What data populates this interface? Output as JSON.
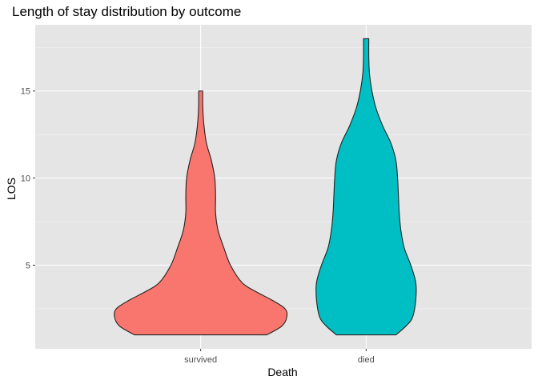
{
  "chart_data": {
    "type": "violin",
    "title": "Length of stay distribution by outcome",
    "xlabel": "Death",
    "ylabel": "LOS",
    "categories": [
      "survived",
      "died"
    ],
    "ylim": [
      0.2,
      18.8
    ],
    "yticks": [
      5,
      10,
      15
    ],
    "grid": true,
    "legend": "none",
    "colors": {
      "panel": "#e5e5e5",
      "grid_major": "#ffffff",
      "grid_minor": "#f2f2f2",
      "outline": "#222222"
    },
    "series": [
      {
        "category": "survived",
        "color": "#f8766d",
        "ymin": 1,
        "ymax": 15,
        "profile": [
          [
            1.0,
            0.4
          ],
          [
            1.5,
            0.49
          ],
          [
            2.0,
            0.52
          ],
          [
            2.5,
            0.51
          ],
          [
            3.0,
            0.43
          ],
          [
            3.5,
            0.33
          ],
          [
            4.0,
            0.25
          ],
          [
            5.0,
            0.18
          ],
          [
            6.0,
            0.14
          ],
          [
            7.0,
            0.105
          ],
          [
            8.0,
            0.09
          ],
          [
            9.0,
            0.09
          ],
          [
            10.0,
            0.085
          ],
          [
            11.0,
            0.065
          ],
          [
            12.0,
            0.035
          ],
          [
            13.0,
            0.02
          ],
          [
            14.0,
            0.013
          ],
          [
            15.0,
            0.012
          ]
        ]
      },
      {
        "category": "died",
        "color": "#00bfc4",
        "ymin": 1,
        "ymax": 18,
        "profile": [
          [
            1.0,
            0.18
          ],
          [
            1.5,
            0.24
          ],
          [
            2.0,
            0.28
          ],
          [
            3.0,
            0.3
          ],
          [
            4.0,
            0.3
          ],
          [
            5.0,
            0.27
          ],
          [
            6.0,
            0.23
          ],
          [
            7.0,
            0.21
          ],
          [
            8.0,
            0.2
          ],
          [
            9.0,
            0.195
          ],
          [
            10.0,
            0.19
          ],
          [
            11.0,
            0.18
          ],
          [
            12.0,
            0.15
          ],
          [
            13.0,
            0.1
          ],
          [
            14.0,
            0.06
          ],
          [
            15.0,
            0.035
          ],
          [
            16.0,
            0.02
          ],
          [
            17.0,
            0.016
          ],
          [
            18.0,
            0.016
          ]
        ]
      }
    ]
  }
}
